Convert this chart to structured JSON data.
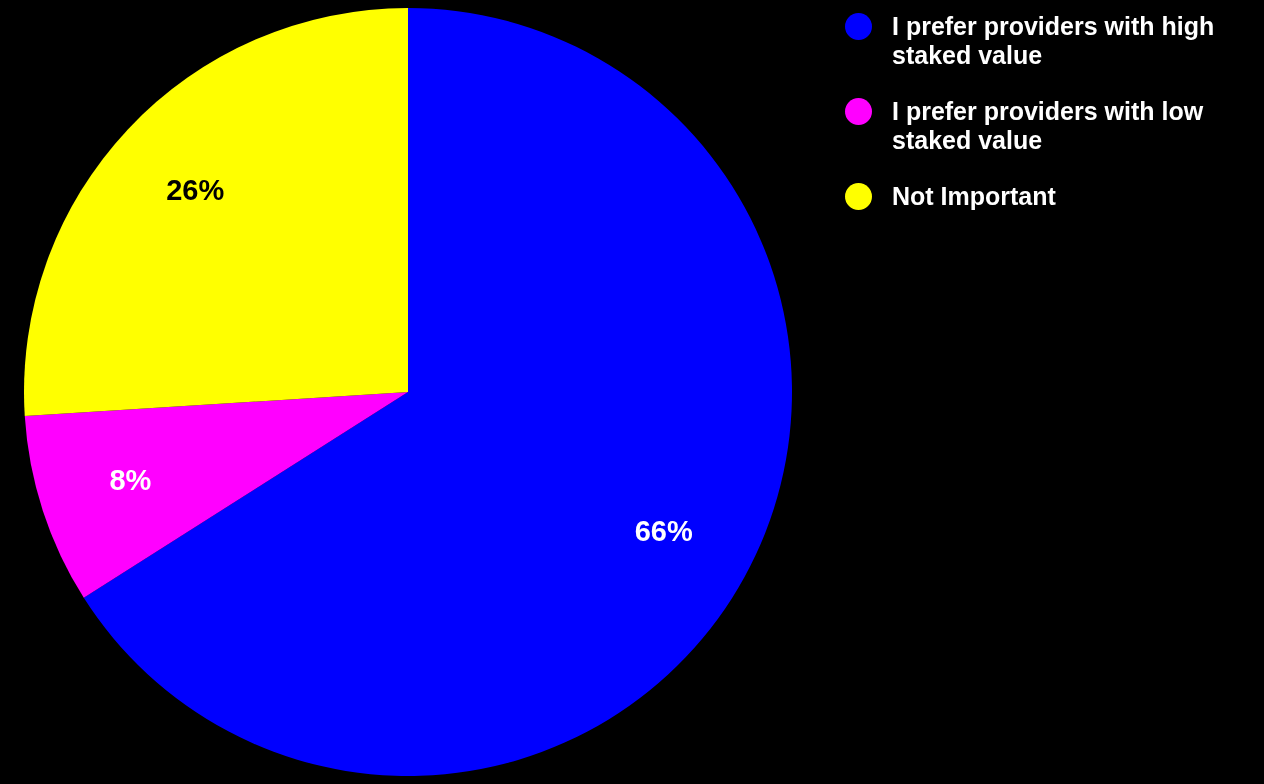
{
  "chart_data": {
    "type": "pie",
    "categories": [
      "I prefer providers with high staked value",
      "I prefer providers with low staked value",
      "Not Important"
    ],
    "values": [
      66,
      8,
      26
    ],
    "colors": [
      "#0000ff",
      "#ff00ff",
      "#ffff00"
    ],
    "legend": "top right",
    "value_labels": [
      "66%",
      "8%",
      "26%"
    ]
  }
}
